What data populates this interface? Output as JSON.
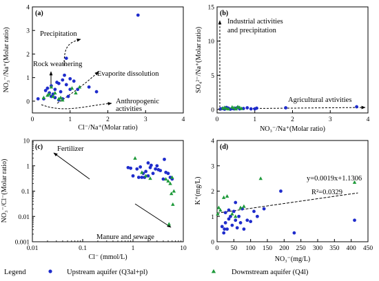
{
  "colors": {
    "upstream": "#1f2ccc",
    "downstream": "#1e9a3a",
    "axis": "#000000"
  },
  "legend": {
    "title": "Legend",
    "upstream": "Upstream aquifer (Q3al+pl)",
    "downstream": "Downstream aquifer (Q4l)"
  },
  "chart_data": [
    {
      "panel": "a",
      "panel_label": "(a)",
      "type": "scatter",
      "xlabel": "Cl⁻/Na⁺(Molar ratio)",
      "ylabel": "NO₃⁻/Na⁺(Molar ratio)",
      "xlim": [
        0,
        4
      ],
      "ylim": [
        -0.5,
        4
      ],
      "xticks": [
        0,
        1,
        2,
        3,
        4
      ],
      "yticks": [
        0,
        1,
        2,
        3,
        4
      ],
      "annotations": [
        "Precipitation",
        "Rock weathering",
        "Evaporite dissolution",
        "Anthropogenic",
        "activities"
      ],
      "series": [
        {
          "name": "Upstream aquifer",
          "points": [
            [
              0.15,
              0.1
            ],
            [
              0.3,
              0.1
            ],
            [
              0.35,
              0.45
            ],
            [
              0.4,
              0.55
            ],
            [
              0.45,
              0.35
            ],
            [
              0.5,
              0.65
            ],
            [
              0.55,
              0.3
            ],
            [
              0.6,
              0.5
            ],
            [
              0.65,
              0.8
            ],
            [
              0.7,
              0.75
            ],
            [
              0.75,
              0.4
            ],
            [
              0.8,
              0.9
            ],
            [
              0.85,
              1.1
            ],
            [
              0.9,
              0.7
            ],
            [
              0.95,
              0.2
            ],
            [
              1.0,
              0.95
            ],
            [
              0.6,
              0.15
            ],
            [
              0.7,
              0.05
            ],
            [
              0.8,
              0.1
            ],
            [
              1.0,
              0.5
            ],
            [
              1.1,
              0.85
            ],
            [
              1.2,
              0.5
            ],
            [
              0.9,
              1.82
            ],
            [
              1.5,
              0.6
            ],
            [
              1.7,
              0.4
            ],
            [
              0.5,
              0.2
            ],
            [
              2.8,
              3.65
            ]
          ]
        },
        {
          "name": "Downstream aquifer",
          "points": [
            [
              0.3,
              0.15
            ],
            [
              0.4,
              0.25
            ],
            [
              0.45,
              0.3
            ],
            [
              0.5,
              0.6
            ],
            [
              0.55,
              0.2
            ],
            [
              0.6,
              0.35
            ],
            [
              0.7,
              0.1
            ],
            [
              0.75,
              0.15
            ],
            [
              0.8,
              0.05
            ],
            [
              1.05,
              0.55
            ],
            [
              1.15,
              0.35
            ],
            [
              1.25,
              0.6
            ]
          ]
        }
      ]
    },
    {
      "panel": "b",
      "panel_label": "(b)",
      "type": "scatter",
      "xlabel": "NO₃⁻/Na⁺(Molar ratio)",
      "ylabel": "SO₄²⁻/Na⁺(Molar ratio)",
      "xlim": [
        0,
        4
      ],
      "ylim": [
        -0.5,
        15
      ],
      "xticks": [
        0,
        1,
        2,
        3,
        4
      ],
      "yticks": [
        0,
        5,
        10,
        15
      ],
      "annotations": [
        "Industrial activities",
        "and precipitation",
        "Agricultural avtivities"
      ],
      "series": [
        {
          "name": "Upstream aquifer",
          "points": [
            [
              0.1,
              0.1
            ],
            [
              0.15,
              0.15
            ],
            [
              0.2,
              0.05
            ],
            [
              0.3,
              0.2
            ],
            [
              0.4,
              0.15
            ],
            [
              0.5,
              0.2
            ],
            [
              0.6,
              0.1
            ],
            [
              0.7,
              0.15
            ],
            [
              0.8,
              0.25
            ],
            [
              0.9,
              0.1
            ],
            [
              1.0,
              0.1
            ],
            [
              1.05,
              0.2
            ],
            [
              0.25,
              0.3
            ],
            [
              0.35,
              0.05
            ],
            [
              0.45,
              0.1
            ],
            [
              0.55,
              0.3
            ],
            [
              1.82,
              0.25
            ],
            [
              3.7,
              0.4
            ]
          ]
        },
        {
          "name": "Downstream aquifer",
          "points": [
            [
              0.15,
              0.2
            ],
            [
              0.2,
              0.3
            ],
            [
              0.3,
              0.1
            ],
            [
              0.45,
              0.25
            ],
            [
              0.55,
              0.4
            ],
            [
              0.65,
              0.15
            ],
            [
              0.4,
              0.35
            ],
            [
              0.25,
              0.15
            ],
            [
              0.5,
              0.1
            ],
            [
              0.6,
              0.3
            ]
          ]
        }
      ]
    },
    {
      "panel": "c",
      "panel_label": "(c)",
      "type": "scatter",
      "xlabel": "Cl⁻ (mmol/L)",
      "ylabel": "NO₃⁻/Cl⁻(Molar ratio)",
      "xscale": "log",
      "yscale": "log",
      "xlim": [
        0.01,
        10
      ],
      "ylim": [
        0.001,
        10
      ],
      "xticks": [
        0.01,
        0.1,
        1,
        10
      ],
      "yticks": [
        0.001,
        0.01,
        0.1,
        1,
        10
      ],
      "xticklabels": [
        "0.01",
        "0.1",
        "1",
        "10"
      ],
      "yticklabels": [
        "0.001",
        "0.01",
        "0.1",
        "1",
        "10"
      ],
      "annotations": [
        "Fertilizer",
        "Manure and sewage"
      ],
      "series": [
        {
          "name": "Upstream aquifer",
          "points": [
            [
              0.8,
              0.85
            ],
            [
              0.9,
              0.8
            ],
            [
              1.0,
              0.4
            ],
            [
              1.2,
              0.75
            ],
            [
              1.4,
              0.9
            ],
            [
              1.5,
              0.35
            ],
            [
              1.6,
              0.5
            ],
            [
              1.8,
              0.6
            ],
            [
              2.0,
              0.4
            ],
            [
              2.2,
              0.85
            ],
            [
              2.5,
              0.5
            ],
            [
              2.8,
              0.75
            ],
            [
              3.0,
              1.0
            ],
            [
              3.5,
              0.65
            ],
            [
              4.0,
              0.3
            ],
            [
              4.5,
              0.55
            ],
            [
              5.0,
              0.5
            ],
            [
              5.5,
              0.35
            ],
            [
              6.0,
              0.3
            ],
            [
              1.3,
              0.35
            ],
            [
              1.7,
              0.35
            ],
            [
              2.0,
              1.3
            ],
            [
              2.3,
              1.05
            ],
            [
              3.2,
              0.7
            ],
            [
              4.2,
              1.8
            ]
          ]
        },
        {
          "name": "Downstream aquifer",
          "points": [
            [
              1.1,
              2.0
            ],
            [
              1.5,
              0.55
            ],
            [
              1.8,
              0.4
            ],
            [
              2.2,
              0.32
            ],
            [
              4.5,
              0.3
            ],
            [
              5.0,
              0.25
            ],
            [
              5.5,
              0.2
            ],
            [
              6.0,
              0.35
            ],
            [
              6.5,
              0.1
            ],
            [
              5.2,
              0.005
            ],
            [
              6.2,
              0.03
            ],
            [
              5.8,
              0.08
            ]
          ]
        }
      ]
    },
    {
      "panel": "d",
      "panel_label": "(d)",
      "type": "scatter",
      "xlabel": "NO₃⁻(mg/L)",
      "ylabel": "K⁺(mg/L)",
      "xlim": [
        0,
        450
      ],
      "ylim": [
        0,
        4
      ],
      "xticks": [
        0,
        50,
        100,
        150,
        200,
        250,
        300,
        350,
        400,
        450
      ],
      "yticks": [
        0,
        1,
        2,
        3,
        4
      ],
      "fit": {
        "slope": 0.0019,
        "intercept": 1.1306,
        "x_range": [
          0,
          420
        ],
        "equation": "y=0.0019x+1.1306",
        "r2": "R²=0.0329"
      },
      "series": [
        {
          "name": "Upstream aquifer",
          "points": [
            [
              15,
              0.6
            ],
            [
              20,
              0.35
            ],
            [
              25,
              0.75
            ],
            [
              30,
              0.5
            ],
            [
              35,
              0.9
            ],
            [
              40,
              1.0
            ],
            [
              45,
              0.65
            ],
            [
              50,
              1.2
            ],
            [
              55,
              0.85
            ],
            [
              60,
              0.55
            ],
            [
              65,
              1.0
            ],
            [
              70,
              0.75
            ],
            [
              75,
              1.3
            ],
            [
              80,
              0.5
            ],
            [
              90,
              0.85
            ],
            [
              100,
              0.8
            ],
            [
              110,
              1.2
            ],
            [
              120,
              1.0
            ],
            [
              140,
              1.3
            ],
            [
              190,
              2.0
            ],
            [
              230,
              0.35
            ],
            [
              410,
              0.85
            ],
            [
              55,
              1.55
            ],
            [
              35,
              1.25
            ],
            [
              25,
              1.15
            ],
            [
              22,
              0.5
            ]
          ]
        },
        {
          "name": "Downstream aquifer",
          "points": [
            [
              2,
              1.1
            ],
            [
              5,
              1.35
            ],
            [
              10,
              1.25
            ],
            [
              20,
              1.75
            ],
            [
              30,
              1.8
            ],
            [
              45,
              1.1
            ],
            [
              55,
              1.0
            ],
            [
              70,
              1.35
            ],
            [
              80,
              1.4
            ],
            [
              130,
              2.5
            ],
            [
              410,
              2.35
            ]
          ]
        }
      ]
    }
  ]
}
